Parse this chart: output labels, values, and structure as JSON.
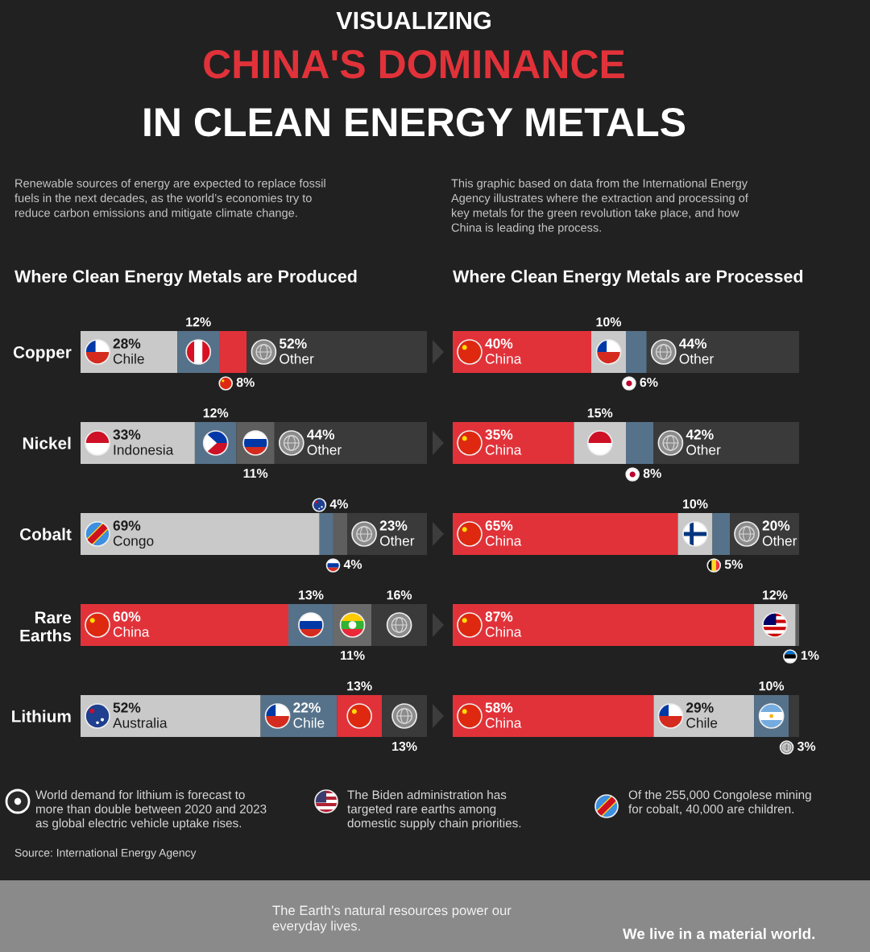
{
  "chart_data": [
    {
      "type": "other",
      "title": "VISUALIZING\nCHINA'S DOMINANCE\nIN CLEAN ENERGY METALS",
      "annotations": [
        "Renewable sources of energy are expected to replace fossil\nfuels in the next decades, as the world’s economies try to\nreduce carbon emissions and mitigate climate change.",
        "This graphic based on data from the International Energy\nAgency illustrates where the extraction and processing of\nkey metals for the green revolution take place, and how\nChina is leading the process."
      ]
    },
    {
      "type": "bar",
      "orientation": "horizontal",
      "stacked": true,
      "title": "Where Clean Energy Metals are Produced",
      "categories": [
        "Copper",
        "Nickel",
        "Cobalt",
        "Rare\nEarths",
        "Lithium"
      ],
      "xlim": [
        0,
        100
      ],
      "tick_labels": "y",
      "series": [
        {
          "colors": [
            "#c9c9c9",
            "#c9c9c9",
            "#c9c9c9",
            "#e1323a",
            "#c9c9c9"
          ],
          "values": [
            28,
            33,
            69,
            60,
            52
          ],
          "value_labels": [
            "28%\nChile",
            "33%\nIndonesia",
            "69%\nCongo",
            "60%\nChina",
            "52%\nAustralia"
          ]
        },
        {
          "colors": [
            "#56728a",
            "#56728a",
            "#56728a",
            "#56728a",
            "#56728a"
          ],
          "values": [
            12,
            12,
            4,
            13,
            22
          ],
          "value_labels": [
            "12%",
            "12%",
            "4%",
            "13%",
            "22%\nChile"
          ]
        },
        {
          "colors": [
            "#e1323a",
            "#5e5e5e",
            "#5e5e5e",
            "#6a6a6a",
            "#e1323a"
          ],
          "values": [
            8,
            11,
            4,
            11,
            13
          ],
          "value_labels": [
            "8%",
            "11%",
            "4%",
            "11%",
            "13%"
          ]
        },
        {
          "colors": [
            "#3a3a3a",
            "#3a3a3a",
            "#3a3a3a",
            "#3a3a3a",
            "#3a3a3a"
          ],
          "values": [
            52,
            44,
            23,
            16,
            13
          ],
          "value_labels": [
            "52%\nOther",
            "44%\nOther",
            "23%\nOther",
            "16%",
            "13%"
          ]
        }
      ]
    },
    {
      "type": "bar",
      "orientation": "horizontal",
      "stacked": true,
      "title": "Where Clean Energy Metals are Processed",
      "categories": [
        null,
        null,
        null,
        null,
        null
      ],
      "xlim": [
        0,
        100
      ],
      "tick_labels": false,
      "series": [
        {
          "colors": [
            "#e1323a",
            "#e1323a",
            "#e1323a",
            "#e1323a",
            "#e1323a"
          ],
          "values": [
            40,
            35,
            65,
            87,
            58
          ],
          "value_labels": [
            "40%\nChina",
            "35%\nChina",
            "65%\nChina",
            "87%\nChina",
            "58%\nChina"
          ]
        },
        {
          "colors": [
            "#c9c9c9",
            "#c9c9c9",
            "#c9c9c9",
            "#c9c9c9",
            "#c9c9c9"
          ],
          "values": [
            10,
            15,
            10,
            12,
            29
          ],
          "value_labels": [
            "10%",
            "15%",
            "10%",
            "12%",
            "29%\nChile"
          ]
        },
        {
          "colors": [
            "#56728a",
            "#56728a",
            "#56728a",
            "#5e5e5e",
            "#56728a"
          ],
          "values": [
            6,
            8,
            5,
            1,
            10
          ],
          "value_labels": [
            "6%",
            "8%",
            "5%",
            "1%",
            "10%"
          ]
        },
        {
          "colors": [
            "#3a3a3a",
            "#3a3a3a",
            "#3a3a3a",
            "#3a3a3a",
            "#3a3a3a"
          ],
          "values": [
            44,
            42,
            20,
            null,
            3
          ],
          "value_labels": [
            "44%\nOther",
            "42%\nOther",
            "20%\nOther",
            null,
            "3%"
          ]
        }
      ]
    },
    {
      "type": "other",
      "annotations": [
        "World demand for lithium is forecast to\nmore than double between 2020 and 2023\nas global electric vehicle uptake rises.",
        "The Biden administration has\ntargeted rare earths among\ndomestic supply chain priorities.",
        "Of the 255,000 Congolese mining\nfor cobalt, 40,000 are children.",
        "Source: International Energy Agency",
        "The Earth's natural resources power our\neveryday lives.",
        "We live in a material world."
      ]
    }
  ]
}
